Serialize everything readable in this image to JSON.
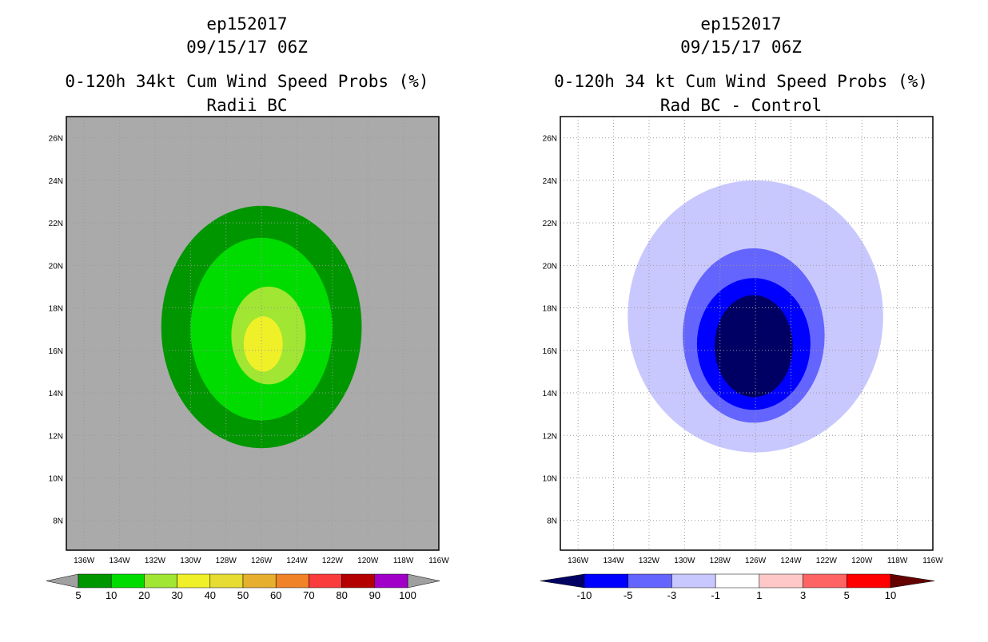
{
  "chart_data": [
    {
      "type": "heatmap",
      "storm_id": "ep152017",
      "datetime": "09/15/17 06Z",
      "title": "0-120h 34kt Cum Wind Speed Probs (%)",
      "subtitle": "Radii BC",
      "x_ticks": [
        "136W",
        "134W",
        "132W",
        "130W",
        "128W",
        "126W",
        "124W",
        "122W",
        "120W",
        "118W",
        "116W"
      ],
      "y_ticks": [
        "26N",
        "24N",
        "22N",
        "20N",
        "18N",
        "16N",
        "14N",
        "12N",
        "10N",
        "8N"
      ],
      "xlim": [
        -137,
        -116
      ],
      "ylim": [
        6.6,
        27
      ],
      "background_color": "#aaaaaa",
      "colorbar": {
        "labels": [
          "5",
          "10",
          "20",
          "30",
          "40",
          "50",
          "60",
          "70",
          "80",
          "90",
          "100"
        ],
        "colors": [
          "#009600",
          "#00dc00",
          "#a0e632",
          "#f0f028",
          "#e6dc32",
          "#e6af2d",
          "#f08228",
          "#fa3c3c",
          "#b40000",
          "#a000c8"
        ],
        "under_color": "#a0a0a0",
        "over_color": "#a0a0a0"
      },
      "contours": [
        {
          "level": 5,
          "color": "#009600",
          "center_lon": -126.0,
          "center_lat": 17.1,
          "lon_radius": 5.65,
          "lat_radius": 5.7
        },
        {
          "level": 10,
          "color": "#00dc00",
          "center_lon": -126.0,
          "center_lat": 17.0,
          "lon_radius": 4.0,
          "lat_radius": 4.3
        },
        {
          "level": 20,
          "color": "#a0e632",
          "center_lon": -125.6,
          "center_lat": 16.7,
          "lon_radius": 2.1,
          "lat_radius": 2.3
        },
        {
          "level": 30,
          "color": "#f0f028",
          "center_lon": -125.9,
          "center_lat": 16.3,
          "lon_radius": 1.1,
          "lat_radius": 1.3
        }
      ]
    },
    {
      "type": "heatmap",
      "storm_id": "ep152017",
      "datetime": "09/15/17 06Z",
      "title": "0-120h 34 kt Cum Wind Speed Probs (%)",
      "subtitle": "Rad BC - Control",
      "x_ticks": [
        "136W",
        "134W",
        "132W",
        "130W",
        "128W",
        "126W",
        "124W",
        "122W",
        "120W",
        "118W",
        "116W"
      ],
      "y_ticks": [
        "26N",
        "24N",
        "22N",
        "20N",
        "18N",
        "16N",
        "14N",
        "12N",
        "10N",
        "8N"
      ],
      "xlim": [
        -137,
        -116
      ],
      "ylim": [
        6.6,
        27
      ],
      "background_color": "#ffffff",
      "grid": true,
      "colorbar": {
        "labels": [
          "-10",
          "-5",
          "-3",
          "-1",
          "1",
          "3",
          "5",
          "10"
        ],
        "colors": [
          "#0000ff",
          "#6464ff",
          "#c8c8ff",
          "#ffffff",
          "#ffc8c8",
          "#ff6464",
          "#ff0000"
        ],
        "under_color": "#000064",
        "over_color": "#640000"
      },
      "contours": [
        {
          "level": -1,
          "color": "#c8c8ff",
          "center_lon": -126.0,
          "center_lat": 17.6,
          "lon_radius": 7.2,
          "lat_radius": 6.4
        },
        {
          "level": -3,
          "color": "#6464ff",
          "center_lon": -126.1,
          "center_lat": 16.7,
          "lon_radius": 4.0,
          "lat_radius": 4.1
        },
        {
          "level": -5,
          "color": "#0000ff",
          "center_lon": -126.1,
          "center_lat": 16.3,
          "lon_radius": 3.2,
          "lat_radius": 3.1
        },
        {
          "level": -10,
          "color": "#000064",
          "center_lon": -126.1,
          "center_lat": 16.2,
          "lon_radius": 2.2,
          "lat_radius": 2.4
        }
      ]
    }
  ]
}
